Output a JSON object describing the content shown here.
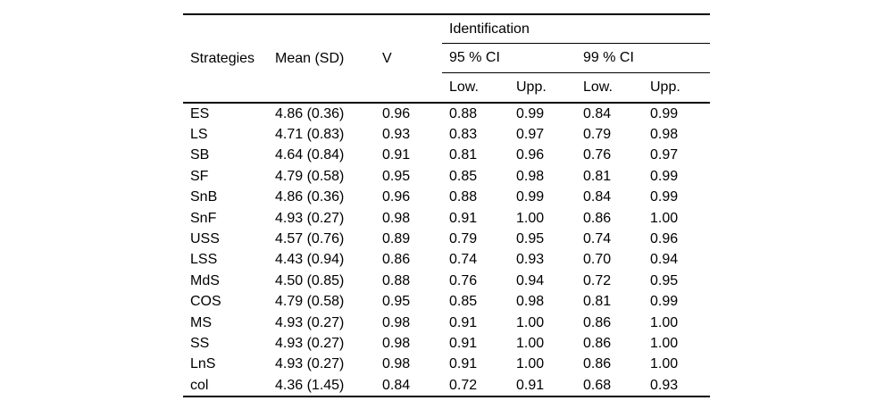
{
  "colors": {
    "background": "#ffffff",
    "text": "#000000",
    "rule": "#000000"
  },
  "chart_data": {
    "type": "table",
    "col_headers": {
      "strategies": "Strategies",
      "mean_sd": "Mean (SD)",
      "v": "V",
      "identification": "Identification",
      "ci95": "95 % CI",
      "ci99": "99 % CI"
    },
    "sub_headers": [
      "Low.",
      "Upp.",
      "Low.",
      "Upp."
    ],
    "rows": [
      [
        "ES",
        "4.86 (0.36)",
        "0.96",
        "0.88",
        "0.99",
        "0.84",
        "0.99"
      ],
      [
        "LS",
        "4.71 (0.83)",
        "0.93",
        "0.83",
        "0.97",
        "0.79",
        "0.98"
      ],
      [
        "SB",
        "4.64 (0.84)",
        "0.91",
        "0.81",
        "0.96",
        "0.76",
        "0.97"
      ],
      [
        "SF",
        "4.79 (0.58)",
        "0.95",
        "0.85",
        "0.98",
        "0.81",
        "0.99"
      ],
      [
        "SnB",
        "4.86 (0.36)",
        "0.96",
        "0.88",
        "0.99",
        "0.84",
        "0.99"
      ],
      [
        "SnF",
        "4.93 (0.27)",
        "0.98",
        "0.91",
        "1.00",
        "0.86",
        "1.00"
      ],
      [
        "USS",
        "4.57 (0.76)",
        "0.89",
        "0.79",
        "0.95",
        "0.74",
        "0.96"
      ],
      [
        "LSS",
        "4.43 (0.94)",
        "0.86",
        "0.74",
        "0.93",
        "0.70",
        "0.94"
      ],
      [
        "MdS",
        "4.50 (0.85)",
        "0.88",
        "0.76",
        "0.94",
        "0.72",
        "0.95"
      ],
      [
        "COS",
        "4.79 (0.58)",
        "0.95",
        "0.85",
        "0.98",
        "0.81",
        "0.99"
      ],
      [
        "MS",
        "4.93 (0.27)",
        "0.98",
        "0.91",
        "1.00",
        "0.86",
        "1.00"
      ],
      [
        "SS",
        "4.93 (0.27)",
        "0.98",
        "0.91",
        "1.00",
        "0.86",
        "1.00"
      ],
      [
        "LnS",
        "4.93 (0.27)",
        "0.98",
        "0.91",
        "1.00",
        "0.86",
        "1.00"
      ],
      [
        "col",
        "4.36 (1.45)",
        "0.84",
        "0.72",
        "0.91",
        "0.68",
        "0.93"
      ]
    ]
  }
}
